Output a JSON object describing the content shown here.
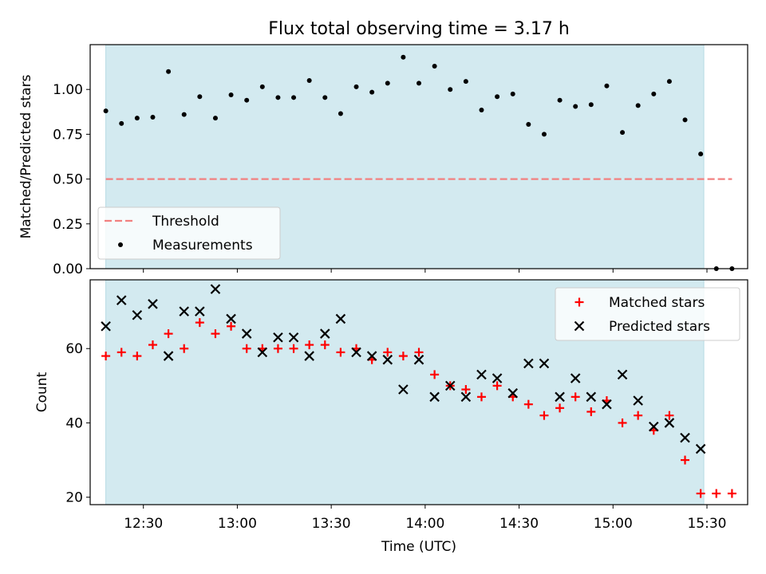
{
  "chart_data": [
    {
      "type": "scatter",
      "title": "Flux total observing time = 3.17 h",
      "xlabel": "",
      "ylabel": "Matched/Predicted stars",
      "xlim": [
        "12:13",
        "15:43"
      ],
      "ylim": [
        0,
        1.25
      ],
      "yticks": [
        "0.00",
        "0.25",
        "0.50",
        "0.75",
        "1.00"
      ],
      "grid": false,
      "legend_position": "lower-left",
      "shaded_span": {
        "from": "12:18",
        "to": "15:29",
        "color": "#d3eaf0"
      },
      "threshold": {
        "name": "Threshold",
        "value": 0.5,
        "x_from": "12:18",
        "x_to": "15:38",
        "color": "#f28080"
      },
      "series": [
        {
          "name": "Measurements",
          "color": "#000000",
          "x": [
            "12:18",
            "12:23",
            "12:28",
            "12:33",
            "12:38",
            "12:43",
            "12:48",
            "12:53",
            "12:58",
            "13:03",
            "13:08",
            "13:13",
            "13:18",
            "13:23",
            "13:28",
            "13:33",
            "13:38",
            "13:43",
            "13:48",
            "13:53",
            "13:58",
            "14:03",
            "14:08",
            "14:13",
            "14:18",
            "14:23",
            "14:28",
            "14:33",
            "14:38",
            "14:43",
            "14:48",
            "14:53",
            "14:58",
            "15:03",
            "15:08",
            "15:13",
            "15:18",
            "15:23",
            "15:28",
            "15:33",
            "15:38"
          ],
          "y": [
            0.88,
            0.81,
            0.84,
            0.845,
            1.1,
            0.86,
            0.96,
            0.84,
            0.97,
            0.94,
            1.015,
            0.955,
            0.955,
            1.05,
            0.955,
            0.865,
            1.015,
            0.985,
            1.035,
            1.18,
            1.035,
            1.13,
            1.0,
            1.045,
            0.885,
            0.96,
            0.975,
            0.805,
            0.75,
            0.94,
            0.905,
            0.915,
            1.02,
            0.76,
            0.91,
            0.975,
            1.045,
            0.83,
            0.64,
            0.0,
            0.0
          ]
        }
      ]
    },
    {
      "type": "scatter",
      "title": "",
      "xlabel": "Time (UTC)",
      "ylabel": "Count",
      "xlim": [
        "12:13",
        "15:43"
      ],
      "ylim": [
        18,
        78.5
      ],
      "xticks": [
        "12:30",
        "13:00",
        "13:30",
        "14:00",
        "14:30",
        "15:00",
        "15:30"
      ],
      "yticks": [
        "20",
        "40",
        "60"
      ],
      "grid": false,
      "legend_position": "top-right",
      "shaded_span": {
        "from": "12:18",
        "to": "15:29",
        "color": "#d3eaf0"
      },
      "series": [
        {
          "name": "Matched stars",
          "marker": "+",
          "color": "#ff0000",
          "x": [
            "12:18",
            "12:23",
            "12:28",
            "12:33",
            "12:38",
            "12:43",
            "12:48",
            "12:53",
            "12:58",
            "13:03",
            "13:08",
            "13:13",
            "13:18",
            "13:23",
            "13:28",
            "13:33",
            "13:38",
            "13:43",
            "13:48",
            "13:53",
            "13:58",
            "14:03",
            "14:08",
            "14:13",
            "14:18",
            "14:23",
            "14:28",
            "14:33",
            "14:38",
            "14:43",
            "14:48",
            "14:53",
            "14:58",
            "15:03",
            "15:08",
            "15:13",
            "15:18",
            "15:23",
            "15:28",
            "15:33",
            "15:38"
          ],
          "y": [
            58,
            59,
            58,
            61,
            64,
            60,
            67,
            64,
            66,
            60,
            60,
            60,
            60,
            61,
            61,
            59,
            60,
            57,
            59,
            58,
            59,
            53,
            50,
            49,
            47,
            50,
            47,
            45,
            42,
            44,
            47,
            43,
            46,
            40,
            42,
            38,
            42,
            30,
            21,
            21,
            21
          ]
        },
        {
          "name": "Predicted stars",
          "marker": "x",
          "color": "#000000",
          "x": [
            "12:18",
            "12:23",
            "12:28",
            "12:33",
            "12:38",
            "12:43",
            "12:48",
            "12:53",
            "12:58",
            "13:03",
            "13:08",
            "13:13",
            "13:18",
            "13:23",
            "13:28",
            "13:33",
            "13:38",
            "13:43",
            "13:48",
            "13:53",
            "13:58",
            "14:03",
            "14:08",
            "14:13",
            "14:18",
            "14:23",
            "14:28",
            "14:33",
            "14:38",
            "14:43",
            "14:48",
            "14:53",
            "14:58",
            "15:03",
            "15:08",
            "15:13",
            "15:18",
            "15:23",
            "15:28"
          ],
          "y": [
            66,
            73,
            69,
            72,
            58,
            70,
            70,
            76,
            68,
            64,
            59,
            63,
            63,
            58,
            64,
            68,
            59,
            58,
            57,
            49,
            57,
            47,
            50,
            47,
            53,
            52,
            48,
            56,
            56,
            47,
            52,
            47,
            45,
            53,
            46,
            39,
            40,
            36,
            33
          ]
        }
      ]
    }
  ]
}
